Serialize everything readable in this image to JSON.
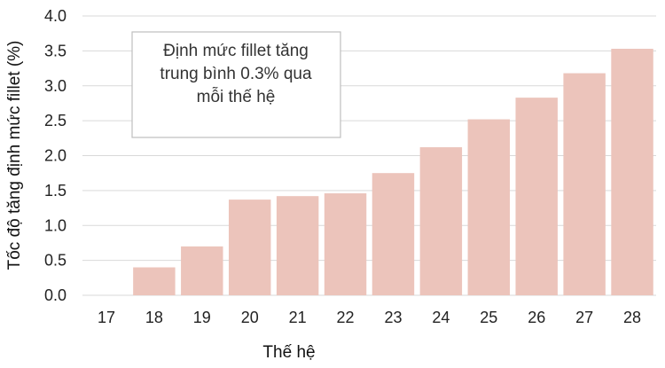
{
  "chart_data": {
    "type": "bar",
    "categories": [
      "17",
      "18",
      "19",
      "20",
      "21",
      "22",
      "23",
      "24",
      "25",
      "26",
      "27",
      "28"
    ],
    "values": [
      0.0,
      0.4,
      0.7,
      1.37,
      1.42,
      1.46,
      1.75,
      2.12,
      2.52,
      2.83,
      3.18,
      3.53
    ],
    "xlabel": "Thế hệ",
    "ylabel": "Tốc độ tăng định mức fillet (%)",
    "ylim": [
      0,
      4.0
    ],
    "yticks": [
      "0.0",
      "0.5",
      "1.0",
      "1.5",
      "2.0",
      "2.5",
      "3.0",
      "3.5",
      "4.0"
    ],
    "grid": true,
    "bar_color": "#ecc4bb",
    "annotation": {
      "lines": [
        "Định mức fillet tăng",
        "trung bình 0.3% qua",
        "mỗi thế hệ"
      ]
    }
  }
}
